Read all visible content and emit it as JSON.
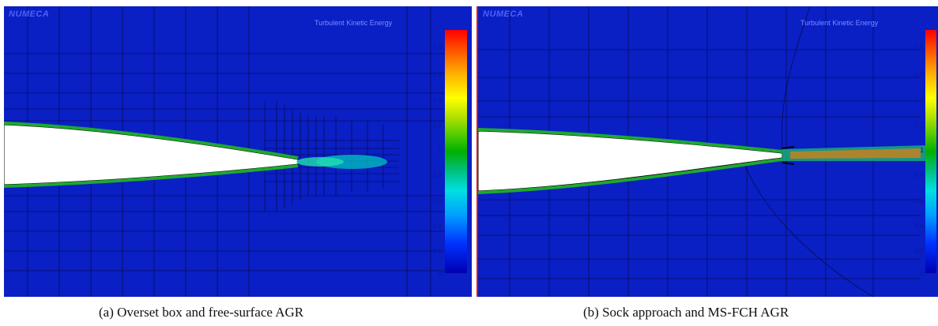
{
  "panels": [
    {
      "logo": "NUMECA",
      "colorbar_title": "Turbulent Kinetic Energy",
      "ticks": [
        "1.6",
        "1.6",
        "1.4",
        "1.2",
        "1",
        "0.8",
        "0.6",
        "0.4",
        "0.2",
        "0"
      ],
      "caption": "(a) Overset box and free-surface AGR"
    },
    {
      "logo": "NUMECA",
      "colorbar_title": "Turbulent Kinetic Energy",
      "ticks": [
        "1.6",
        "1.6",
        "1.4",
        "1.2",
        "1",
        "0.8",
        "0.6",
        "0.4",
        "0.2",
        "0"
      ],
      "caption": "(b) Sock approach and MS-FCH AGR"
    }
  ],
  "colors": {
    "background_field": "#0a1fc4",
    "mesh_lines": "#000000",
    "wake_low": "#00c0a0",
    "wake_high": "#ff6000",
    "separator": "#d21a1a"
  }
}
